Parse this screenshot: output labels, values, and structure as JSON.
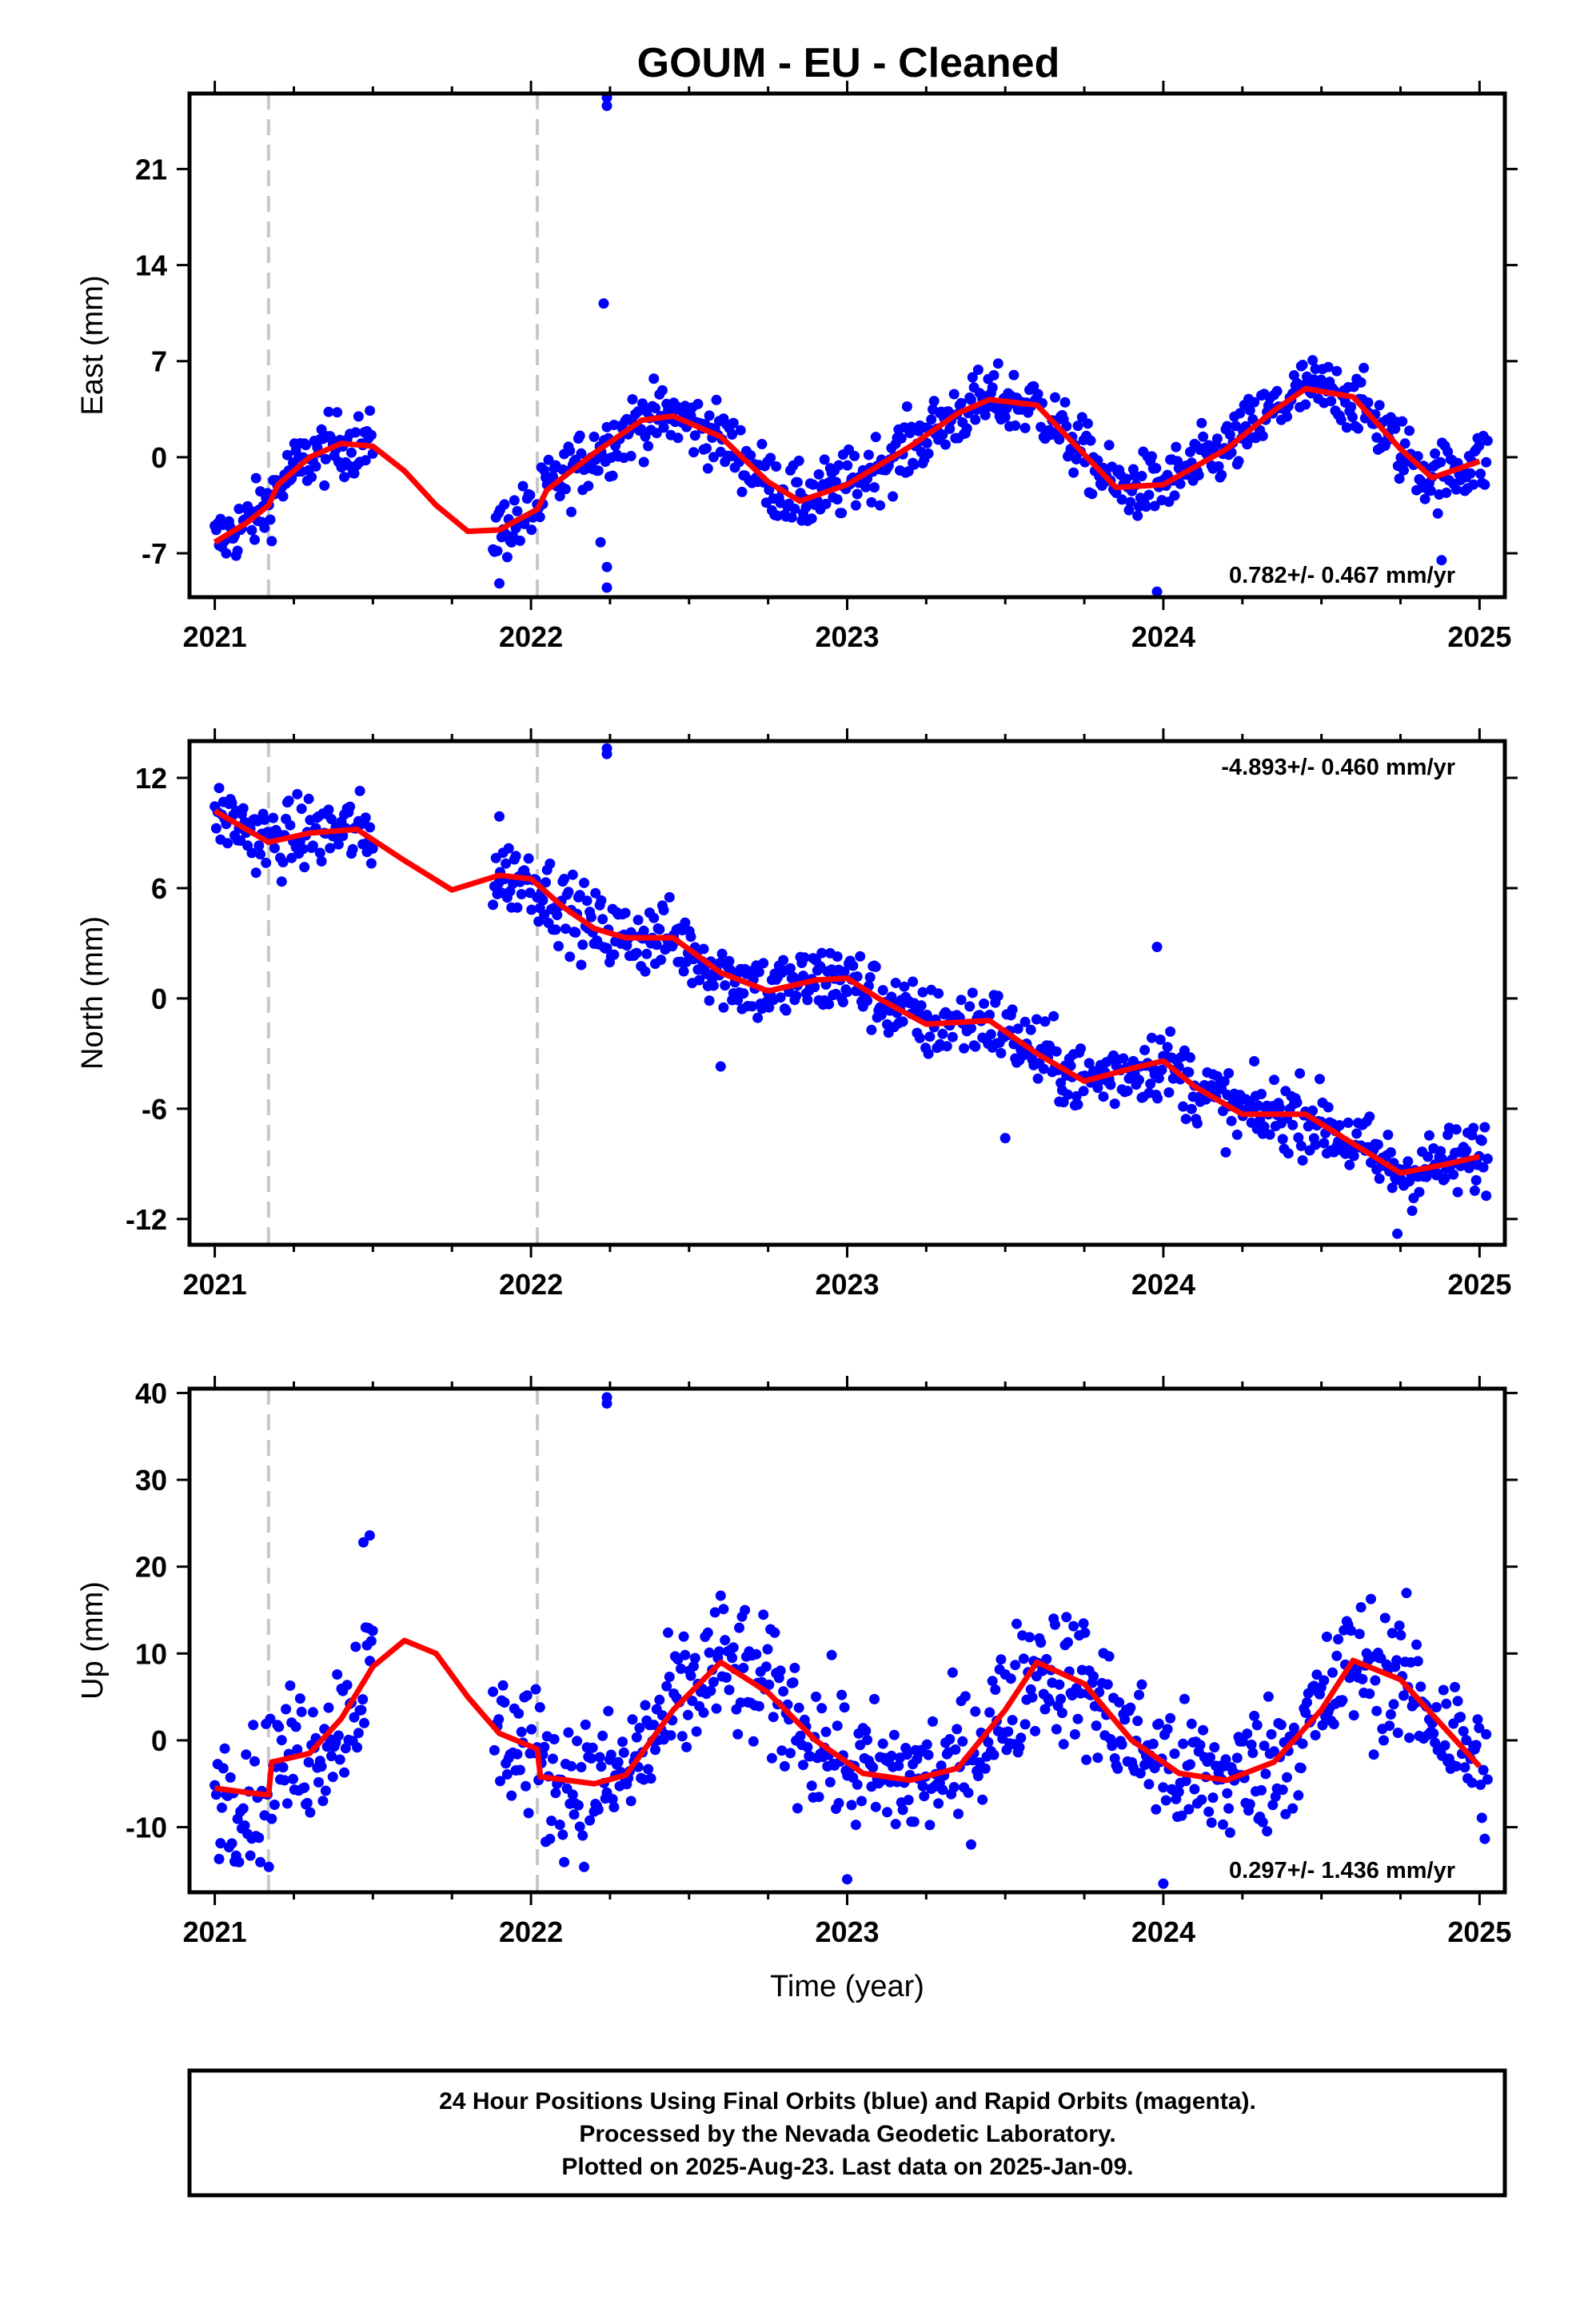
{
  "title": "GOUM  - EU - Cleaned",
  "colors": {
    "points": "#0000ff",
    "model": "#ff0000",
    "steps": "#c8c8c8",
    "frame": "#000000"
  },
  "footer": {
    "line1": "24 Hour Positions Using Final Orbits (blue) and Rapid Orbits (magenta).",
    "line2": "Processed by the Nevada Geodetic Laboratory.",
    "line3": "Plotted on 2025-Aug-23. Last data on 2025-Jan-09."
  },
  "chart_data": [
    {
      "type": "scatter",
      "panel": "east",
      "ylabel": "East (mm)",
      "xlabel": "",
      "xlim": [
        2020.92,
        2025.08
      ],
      "ylim": [
        -10.2,
        26.5
      ],
      "xticks": [
        "2021",
        "2022",
        "2023",
        "2024",
        "2025"
      ],
      "yticks": [
        "-7",
        "0",
        "7",
        "14",
        "21"
      ],
      "ytick_values": [
        -7,
        0,
        7,
        14,
        21
      ],
      "rate_text": "0.782+/- 0.467 mm/yr",
      "rate_position": "bottom-right",
      "grid": false,
      "equipment_changes": [
        2021.17,
        2022.02
      ],
      "model": {
        "x": [
          2021.0,
          2021.1,
          2021.17,
          2021.2,
          2021.3,
          2021.4,
          2021.5,
          2021.6,
          2021.7,
          2021.8,
          2021.9,
          2022.02,
          2022.05,
          2022.2,
          2022.35,
          2022.45,
          2022.6,
          2022.75,
          2022.85,
          2023.0,
          2023.2,
          2023.35,
          2023.45,
          2023.6,
          2023.75,
          2023.85,
          2024.0,
          2024.2,
          2024.35,
          2024.45,
          2024.6,
          2024.75,
          2024.85,
          2025.0
        ],
        "y": [
          -6.2,
          -4.8,
          -3.5,
          -2.0,
          0.0,
          1.0,
          0.8,
          -1.0,
          -3.5,
          -5.4,
          -5.3,
          -3.8,
          -2.4,
          0.3,
          2.7,
          3.0,
          1.5,
          -1.8,
          -3.2,
          -2.0,
          0.8,
          3.2,
          4.2,
          3.8,
          0.2,
          -2.2,
          -2.0,
          0.6,
          3.4,
          5.0,
          4.4,
          0.6,
          -1.5,
          -0.3
        ]
      },
      "points_summary": {
        "segments": [
          [
            2021.0,
            2021.5
          ],
          [
            2021.88,
            2025.03
          ]
        ],
        "scatter_sd": 1.2,
        "outliers": [
          [
            2022.24,
            25.6
          ],
          [
            2022.24,
            26.2
          ],
          [
            2022.23,
            11.2
          ],
          [
            2022.22,
            -6.2
          ],
          [
            2022.24,
            -8.0
          ],
          [
            2022.24,
            -9.5
          ],
          [
            2021.9,
            -9.2
          ],
          [
            2023.98,
            -9.8
          ],
          [
            2024.88,
            -7.5
          ]
        ]
      }
    },
    {
      "type": "scatter",
      "panel": "north",
      "ylabel": "North (mm)",
      "xlabel": "",
      "xlim": [
        2020.92,
        2025.08
      ],
      "ylim": [
        -13.4,
        14.0
      ],
      "xticks": [
        "2021",
        "2022",
        "2023",
        "2024",
        "2025"
      ],
      "yticks": [
        "12",
        "6",
        "0",
        "-6",
        "-12"
      ],
      "ytick_values": [
        12,
        6,
        0,
        -6,
        -12
      ],
      "rate_text": "-4.893+/- 0.460 mm/yr",
      "rate_position": "top-right",
      "grid": false,
      "equipment_changes": [
        2021.17,
        2022.02
      ],
      "model": {
        "x": [
          2021.0,
          2021.1,
          2021.17,
          2021.3,
          2021.45,
          2021.6,
          2021.75,
          2021.9,
          2022.0,
          2022.1,
          2022.2,
          2022.3,
          2022.45,
          2022.6,
          2022.75,
          2022.9,
          2023.0,
          2023.1,
          2023.25,
          2023.45,
          2023.6,
          2023.75,
          2023.9,
          2024.0,
          2024.1,
          2024.25,
          2024.45,
          2024.6,
          2024.75,
          2024.9,
          2025.0
        ],
        "y": [
          10.2,
          9.2,
          8.5,
          9.0,
          9.2,
          7.5,
          5.9,
          6.7,
          6.5,
          5.0,
          3.8,
          3.3,
          3.3,
          1.4,
          0.4,
          1.0,
          1.1,
          0.0,
          -1.4,
          -1.2,
          -3.0,
          -4.5,
          -3.8,
          -3.4,
          -4.8,
          -6.3,
          -6.3,
          -7.9,
          -9.5,
          -9.0,
          -8.6
        ]
      },
      "points_summary": {
        "segments": [
          [
            2021.0,
            2021.5
          ],
          [
            2021.88,
            2025.03
          ]
        ],
        "scatter_sd": 1.0,
        "outliers": [
          [
            2022.24,
            13.3
          ],
          [
            2022.24,
            13.6
          ],
          [
            2021.9,
            9.9
          ],
          [
            2023.98,
            2.8
          ],
          [
            2023.5,
            -7.6
          ],
          [
            2024.74,
            -12.8
          ],
          [
            2022.6,
            -3.7
          ]
        ]
      }
    },
    {
      "type": "scatter",
      "panel": "up",
      "ylabel": "Up (mm)",
      "xlabel": "Time (year)",
      "xlim": [
        2020.92,
        2025.08
      ],
      "ylim": [
        -17.5,
        40.5
      ],
      "xticks": [
        "2021",
        "2022",
        "2023",
        "2024",
        "2025"
      ],
      "yticks": [
        "40",
        "30",
        "20",
        "10",
        "0",
        "-10"
      ],
      "ytick_values": [
        40,
        30,
        20,
        10,
        0,
        -10
      ],
      "rate_text": "0.297+/- 1.436 mm/yr",
      "rate_position": "bottom-right",
      "grid": false,
      "equipment_changes": [
        2021.17,
        2022.02
      ],
      "model": {
        "x": [
          2021.0,
          2021.1,
          2021.17,
          2021.18,
          2021.3,
          2021.4,
          2021.5,
          2021.6,
          2021.7,
          2021.8,
          2021.9,
          2022.02,
          2022.03,
          2022.2,
          2022.3,
          2022.45,
          2022.6,
          2022.75,
          2022.9,
          2023.05,
          2023.2,
          2023.35,
          2023.5,
          2023.6,
          2023.75,
          2023.9,
          2024.05,
          2024.2,
          2024.35,
          2024.5,
          2024.6,
          2024.75,
          2024.9,
          2025.0
        ],
        "y": [
          -5.5,
          -6.0,
          -6.3,
          -2.5,
          -1.5,
          2.5,
          8.5,
          11.5,
          10.0,
          5.0,
          0.8,
          -1.0,
          -4.2,
          -5.0,
          -4.0,
          3.5,
          9.0,
          5.5,
          0.0,
          -3.8,
          -4.6,
          -3.2,
          3.5,
          9.0,
          6.5,
          0.0,
          -3.8,
          -4.6,
          -2.5,
          3.5,
          9.2,
          7.0,
          1.0,
          -3.0
        ]
      },
      "points_summary": {
        "segments": [
          [
            2021.0,
            2021.5
          ],
          [
            2021.88,
            2025.03
          ]
        ],
        "scatter_sd": 4.0,
        "outliers": [
          [
            2022.24,
            38.8
          ],
          [
            2022.24,
            39.5
          ],
          [
            2021.47,
            22.8
          ],
          [
            2021.49,
            23.6
          ],
          [
            2023.0,
            -16.0
          ],
          [
            2024.0,
            -16.5
          ]
        ]
      }
    }
  ]
}
